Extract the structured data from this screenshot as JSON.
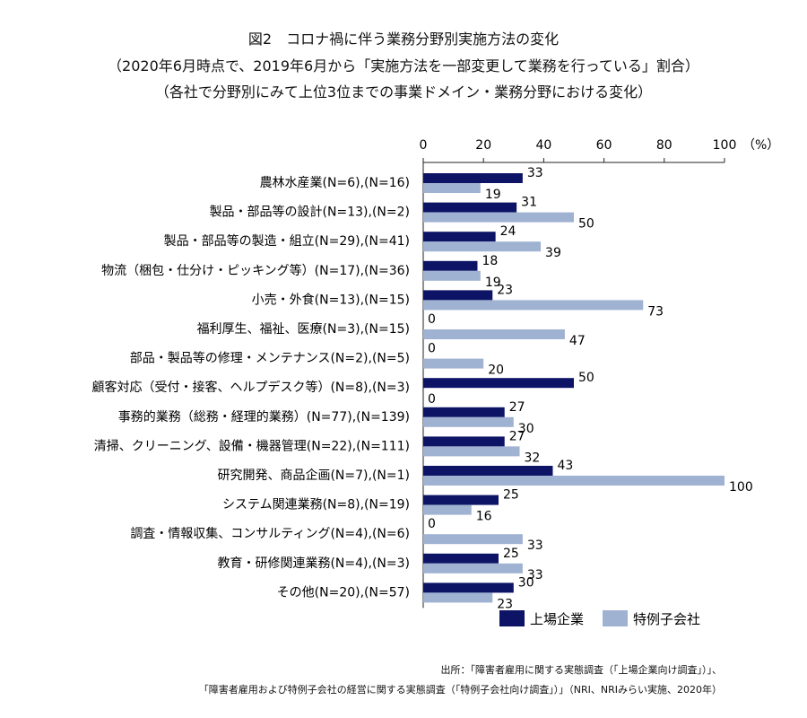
{
  "title_lines": [
    "図2　コロナ禍に伴う業務分野別実施方法の変化",
    "（2020年6月時点で、2019年6月から「実施方法を一部変更して業務を行っている」割合）",
    "（各社で分野別にみて上位3位までの事業ドメイン・業務分野における変化）"
  ],
  "source_lines": [
    "出所：「障害者雇用に関する実態調査（「上場企業向け調査」）」、",
    "「障害者雇用および特例子会社の経営に関する実態調査（「特例子会社向け調査」）」（NRI、NRIみらい実施、2020年）"
  ],
  "chart_data": {
    "type": "bar",
    "orientation": "horizontal",
    "axis_unit": "（%）",
    "xlim": [
      0,
      100
    ],
    "xticks": [
      0,
      20,
      40,
      60,
      80,
      100
    ],
    "axis_position": "top",
    "grid": false,
    "legend_position": "bottom-right",
    "categories": [
      "農林水産業(N=6),(N=16)",
      "製品・部品等の設計(N=13),(N=2)",
      "製品・部品等の製造・組立(N=29),(N=41)",
      "物流（梱包・仕分け・ピッキング等）(N=17),(N=36)",
      "小売・外食(N=13),(N=15)",
      "福利厚生、福祉、医療(N=3),(N=15)",
      "部品・製品等の修理・メンテナンス(N=2),(N=5)",
      "顧客対応（受付・接客、ヘルプデスク等）(N=8),(N=3)",
      "事務的業務（総務・経理的業務）(N=77),(N=139)",
      "清掃、クリーニング、設備・機器管理(N=22),(N=111)",
      "研究開発、商品企画(N=7),(N=1)",
      "システム関連業務(N=8),(N=19)",
      "調査・情報収集、コンサルティング(N=4),(N=6)",
      "教育・研修関連業務(N=4),(N=3)",
      "その他(N=20),(N=57)"
    ],
    "series": [
      {
        "name": "上場企業",
        "color": "#0d1466",
        "values": [
          33,
          31,
          24,
          18,
          23,
          0,
          0,
          50,
          27,
          27,
          43,
          25,
          0,
          25,
          30
        ]
      },
      {
        "name": "特例子会社",
        "color": "#9fb2d2",
        "values": [
          19,
          50,
          39,
          19,
          73,
          47,
          20,
          0,
          30,
          32,
          100,
          16,
          33,
          33,
          23
        ]
      }
    ]
  }
}
